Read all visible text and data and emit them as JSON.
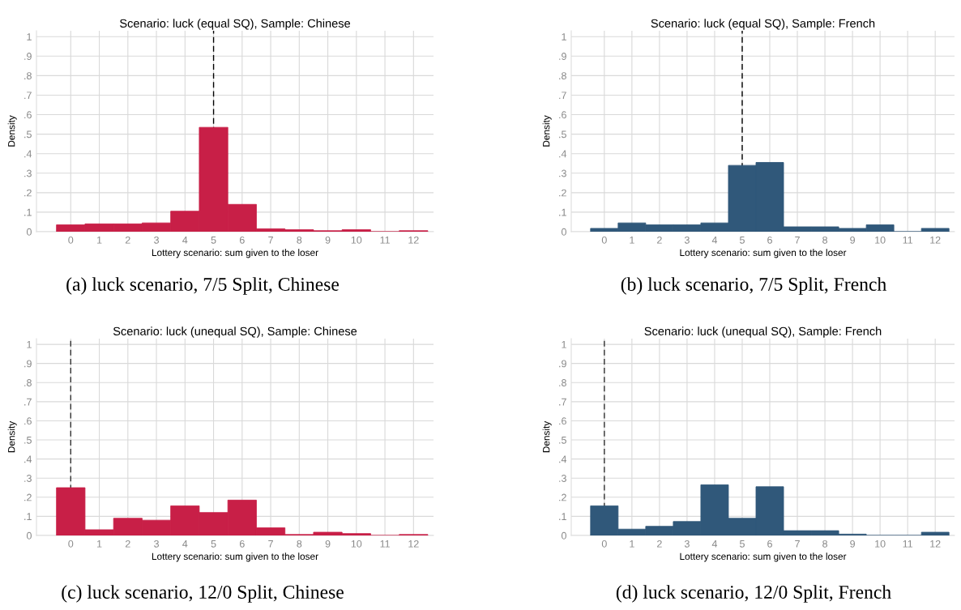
{
  "chart_data": [
    {
      "type": "histogram",
      "title": "Scenario: luck (equal SQ), Sample: Chinese",
      "xlabel": "Lottery scenario: sum given to the loser",
      "ylabel": "Density",
      "annotations": [
        "(a) luck scenario, 7/5 Split, Chinese"
      ],
      "bins": [
        -0.5,
        0.5,
        1.5,
        2.5,
        3.5,
        4.5,
        5.5,
        6.5,
        7.5,
        8.5,
        9.5,
        10.5,
        11.5,
        12.5
      ],
      "values": [
        0.035,
        0.04,
        0.04,
        0.045,
        0.105,
        0.535,
        0.14,
        0.015,
        0.01,
        0.005,
        0.01,
        0,
        0.005
      ],
      "color": "#c81f47",
      "xlim": [
        -1.2,
        12.7
      ],
      "ylim": [
        0,
        1.03
      ],
      "xticks": [
        0,
        1,
        2,
        3,
        4,
        5,
        6,
        7,
        8,
        9,
        10,
        11,
        12
      ],
      "yticks": [
        0,
        {
          "value": 0.1,
          "label": ".1"
        },
        {
          "value": 0.2,
          "label": ".2"
        },
        {
          "value": 0.3,
          "label": ".3"
        },
        {
          "value": 0.4,
          "label": ".4"
        },
        {
          "value": 0.5,
          "label": ".5"
        },
        {
          "value": 0.6,
          "label": ".6"
        },
        {
          "value": 0.7,
          "label": ".7"
        },
        {
          "value": 0.8,
          "label": ".8"
        },
        {
          "value": 0.9,
          "label": ".9"
        },
        1
      ],
      "ref_lines": [
        {
          "axis": "x",
          "value": 5,
          "color": "#000000",
          "line_style": "dashed"
        }
      ],
      "grid": true
    },
    {
      "type": "histogram",
      "title": "Scenario: luck (equal SQ), Sample: French",
      "xlabel": "Lottery scenario: sum given to the loser",
      "ylabel": "Density",
      "annotations": [
        "(b) luck scenario, 7/5 Split, French"
      ],
      "bins": [
        -0.5,
        0.5,
        1.5,
        2.5,
        3.5,
        4.5,
        5.5,
        6.5,
        7.5,
        8.5,
        9.5,
        10.5,
        11.5,
        12.5
      ],
      "values": [
        0.017,
        0.045,
        0.035,
        0.035,
        0.045,
        0.34,
        0.355,
        0.025,
        0.025,
        0.017,
        0.035,
        0,
        0.017
      ],
      "color": "#30587a",
      "xlim": [
        -1.2,
        12.7
      ],
      "ylim": [
        0,
        1.03
      ],
      "xticks": [
        0,
        1,
        2,
        3,
        4,
        5,
        6,
        7,
        8,
        9,
        10,
        11,
        12
      ],
      "yticks": [
        0,
        {
          "value": 0.1,
          "label": ".1"
        },
        {
          "value": 0.2,
          "label": ".2"
        },
        {
          "value": 0.3,
          "label": ".3"
        },
        {
          "value": 0.4,
          "label": ".4"
        },
        {
          "value": 0.5,
          "label": ".5"
        },
        {
          "value": 0.6,
          "label": ".6"
        },
        {
          "value": 0.7,
          "label": ".7"
        },
        {
          "value": 0.8,
          "label": ".8"
        },
        {
          "value": 0.9,
          "label": ".9"
        },
        1
      ],
      "ref_lines": [
        {
          "axis": "x",
          "value": 5,
          "color": "#000000",
          "line_style": "dashed"
        }
      ],
      "grid": true
    },
    {
      "type": "histogram",
      "title": "Scenario: luck (unequal SQ), Sample: Chinese",
      "xlabel": "Lottery scenario: sum given to the loser",
      "ylabel": "Density",
      "annotations": [
        "(c) luck scenario, 12/0 Split, Chinese"
      ],
      "bins": [
        -0.5,
        0.5,
        1.5,
        2.5,
        3.5,
        4.5,
        5.5,
        6.5,
        7.5,
        8.5,
        9.5,
        10.5,
        11.5,
        12.5
      ],
      "values": [
        0.25,
        0.03,
        0.09,
        0.08,
        0.155,
        0.12,
        0.185,
        0.04,
        0.005,
        0.017,
        0.01,
        0,
        0.005
      ],
      "color": "#c81f47",
      "xlim": [
        -1.2,
        12.7
      ],
      "ylim": [
        0,
        1.03
      ],
      "xticks": [
        0,
        1,
        2,
        3,
        4,
        5,
        6,
        7,
        8,
        9,
        10,
        11,
        12
      ],
      "yticks": [
        0,
        {
          "value": 0.1,
          "label": ".1"
        },
        {
          "value": 0.2,
          "label": ".2"
        },
        {
          "value": 0.3,
          "label": ".3"
        },
        {
          "value": 0.4,
          "label": ".4"
        },
        {
          "value": 0.5,
          "label": ".5"
        },
        {
          "value": 0.6,
          "label": ".6"
        },
        {
          "value": 0.7,
          "label": ".7"
        },
        {
          "value": 0.8,
          "label": ".8"
        },
        {
          "value": 0.9,
          "label": ".9"
        },
        1
      ],
      "ref_lines": [
        {
          "axis": "x",
          "value": 0,
          "color": "#333333",
          "line_style": "dashed"
        }
      ],
      "grid": true
    },
    {
      "type": "histogram",
      "title": "Scenario: luck (unequal SQ), Sample: French",
      "xlabel": "Lottery scenario: sum given to the loser",
      "ylabel": "Density",
      "annotations": [
        "(d) luck scenario, 12/0 Split, French"
      ],
      "bins": [
        -0.5,
        0.5,
        1.5,
        2.5,
        3.5,
        4.5,
        5.5,
        6.5,
        7.5,
        8.5,
        9.5,
        10.5,
        11.5,
        12.5
      ],
      "values": [
        0.155,
        0.033,
        0.048,
        0.073,
        0.265,
        0.09,
        0.255,
        0.025,
        0.025,
        0.007,
        0,
        0,
        0.017
      ],
      "color": "#30587a",
      "xlim": [
        -1.2,
        12.7
      ],
      "ylim": [
        0,
        1.03
      ],
      "xticks": [
        0,
        1,
        2,
        3,
        4,
        5,
        6,
        7,
        8,
        9,
        10,
        11,
        12
      ],
      "yticks": [
        0,
        {
          "value": 0.1,
          "label": ".1"
        },
        {
          "value": 0.2,
          "label": ".2"
        },
        {
          "value": 0.3,
          "label": ".3"
        },
        {
          "value": 0.4,
          "label": ".4"
        },
        {
          "value": 0.5,
          "label": ".5"
        },
        {
          "value": 0.6,
          "label": ".6"
        },
        {
          "value": 0.7,
          "label": ".7"
        },
        {
          "value": 0.8,
          "label": ".8"
        },
        {
          "value": 0.9,
          "label": ".9"
        },
        1
      ],
      "ref_lines": [
        {
          "axis": "x",
          "value": 0,
          "color": "#333333",
          "line_style": "dashed"
        }
      ],
      "grid": true
    }
  ]
}
